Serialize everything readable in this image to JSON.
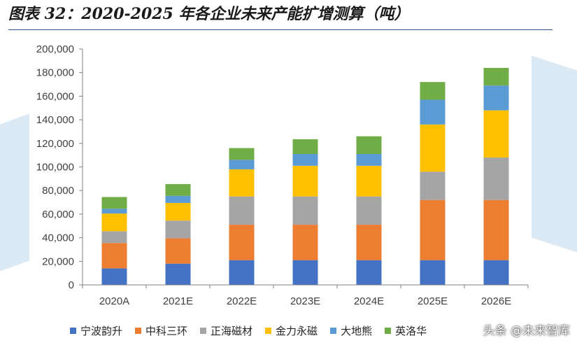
{
  "title": "图表 32：2020-2025 年各企业未来产能扩增测算（吨）",
  "watermark": "头条 @未来智库",
  "chart_data": {
    "type": "bar",
    "stacked": true,
    "categories": [
      "2020A",
      "2021E",
      "2022E",
      "2023E",
      "2024E",
      "2025E",
      "2026E"
    ],
    "series": [
      {
        "name": "宁波韵升",
        "color": "#4472c4",
        "values": [
          14000,
          18000,
          21000,
          21000,
          21000,
          21000,
          21000
        ]
      },
      {
        "name": "中科三环",
        "color": "#ed7d31",
        "values": [
          21500,
          21500,
          30000,
          30000,
          30000,
          51000,
          51000
        ]
      },
      {
        "name": "正海磁材",
        "color": "#a5a5a5",
        "values": [
          10000,
          15000,
          24000,
          24000,
          24000,
          24000,
          36000
        ]
      },
      {
        "name": "金力永磁",
        "color": "#ffc000",
        "values": [
          15000,
          15000,
          23000,
          26000,
          26000,
          40000,
          40000
        ]
      },
      {
        "name": "大地熊",
        "color": "#5b9bd5",
        "values": [
          4000,
          6000,
          8000,
          10000,
          10000,
          21000,
          21000
        ]
      },
      {
        "name": "英洛华",
        "color": "#70ad47",
        "values": [
          10000,
          10000,
          10000,
          12500,
          15000,
          15000,
          15000
        ]
      }
    ],
    "yticks": [
      "0",
      "20,000",
      "40,000",
      "60,000",
      "80,000",
      "100,000",
      "120,000",
      "140,000",
      "160,000",
      "180,000",
      "200,000"
    ],
    "ylim": [
      0,
      200000
    ],
    "xlabel": "",
    "ylabel": "",
    "legend_position": "bottom"
  }
}
